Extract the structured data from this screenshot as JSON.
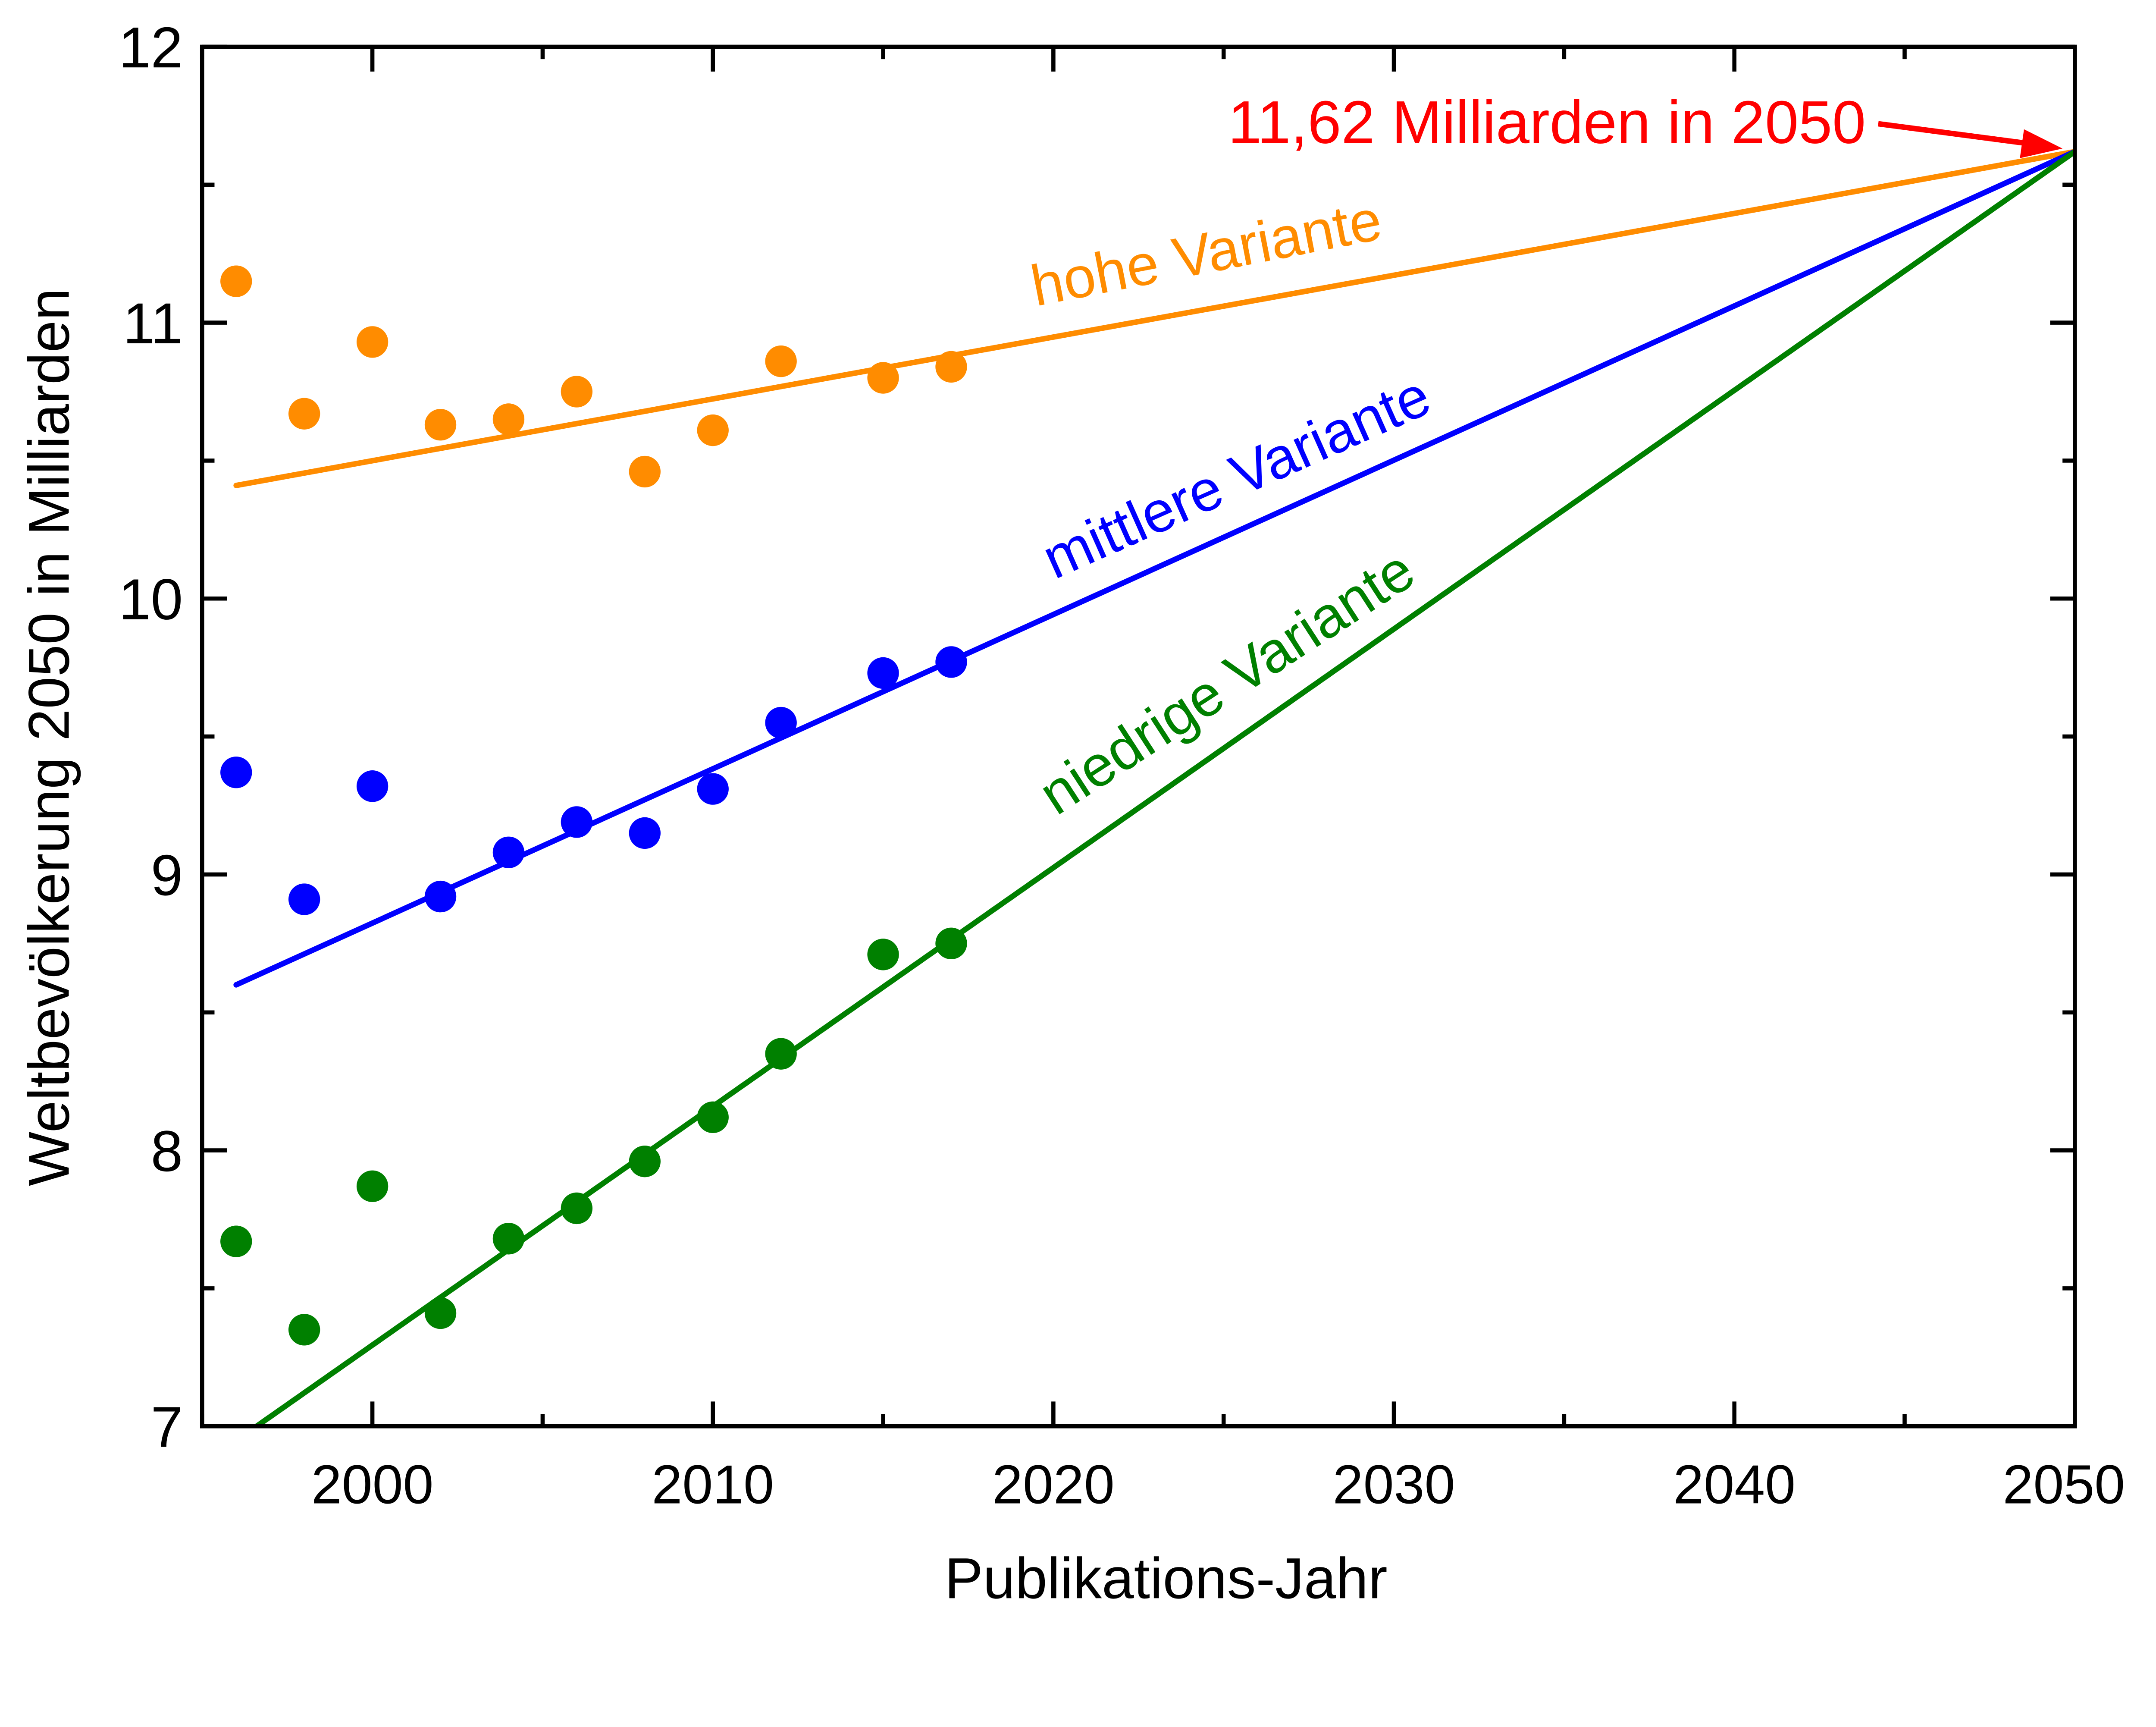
{
  "chart_data": {
    "type": "scatter",
    "xlabel": "Publikations-Jahr",
    "ylabel": "Weltbevölkerung 2050 in Milliarden",
    "xlim": [
      1995,
      2050
    ],
    "ylim": [
      7,
      12
    ],
    "x_ticks": [
      2000,
      2010,
      2020,
      2030,
      2040,
      2050
    ],
    "y_ticks": [
      7,
      8,
      9,
      10,
      11,
      12
    ],
    "grid": false,
    "x": [
      1996,
      1998,
      2000,
      2002,
      2004,
      2006,
      2008,
      2010,
      2012,
      2015,
      2017
    ],
    "series": [
      {
        "name": "hohe Variante",
        "color": "#ff8c00",
        "values": [
          11.15,
          10.67,
          10.93,
          10.63,
          10.65,
          10.75,
          10.46,
          10.61,
          10.86,
          10.8,
          10.84
        ],
        "trend": {
          "x": [
            1996,
            2050
          ],
          "y": [
            10.41,
            11.62
          ]
        }
      },
      {
        "name": "mittlere Variante",
        "color": "#0000ff",
        "values": [
          9.37,
          8.91,
          9.32,
          8.92,
          9.08,
          9.19,
          9.15,
          9.31,
          9.55,
          9.73,
          9.77
        ],
        "trend": {
          "x": [
            1996,
            2050
          ],
          "y": [
            8.6,
            11.62
          ]
        }
      },
      {
        "name": "niedrige Variante",
        "color": "#008000",
        "values": [
          7.67,
          7.35,
          7.87,
          7.41,
          7.68,
          7.79,
          7.96,
          8.12,
          8.35,
          8.71,
          8.75
        ],
        "trend": {
          "x": [
            1996.6,
            2050
          ],
          "y": [
            7.0,
            11.62
          ]
        }
      }
    ],
    "annotation": {
      "text": "11,62 Milliarden in 2050",
      "color": "#ff0000",
      "x": 2050,
      "y": 11.62
    }
  }
}
